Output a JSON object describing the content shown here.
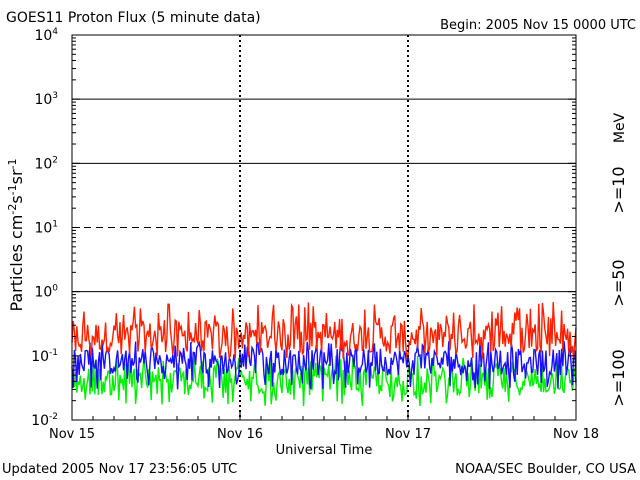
{
  "header": {
    "title": "GOES11 Proton Flux (5 minute data)",
    "begin": "Begin: 2005 Nov 15 0000 UTC"
  },
  "footer": {
    "updated": "Updated 2005 Nov 17 23:56:05 UTC",
    "credit": "NOAA/SEC Boulder, CO USA"
  },
  "colors": {
    "ge10": "#ff2000",
    "ge50": "#1a10ff",
    "ge100": "#00ee00",
    "axis": "#000000"
  },
  "chart_data": {
    "type": "line",
    "title": "GOES11 Proton Flux (5 minute data)",
    "xlabel": "Universal Time",
    "ylabel": {
      "base": "Particles cm",
      "sup1": "-2",
      "mid1": "s",
      "sup2": "-1",
      "mid2": "sr",
      "sup3": "-1"
    },
    "x_ticks": [
      "Nov 15",
      "Nov 16",
      "Nov 17",
      "Nov 18"
    ],
    "y_scale": "log",
    "ylim": [
      0.01,
      10000
    ],
    "y_ticks": [
      {
        "base": "10",
        "exp": "-2"
      },
      {
        "base": "10",
        "exp": "-1"
      },
      {
        "base": "10",
        "exp": "0"
      },
      {
        "base": "10",
        "exp": "1"
      },
      {
        "base": "10",
        "exp": "2"
      },
      {
        "base": "10",
        "exp": "3"
      },
      {
        "base": "10",
        "exp": "4"
      }
    ],
    "threshold_lines": [
      {
        "value": 1,
        "style": "solid"
      },
      {
        "value": 10,
        "style": "dashed"
      },
      {
        "value": 100,
        "style": "solid"
      },
      {
        "value": 1000,
        "style": "solid"
      }
    ],
    "day_separators": [
      "Nov 16",
      "Nov 17"
    ],
    "legend_placement": "right, vertical",
    "unit_label": "MeV",
    "series": [
      {
        "name": ">=10",
        "color": "#ff2000",
        "typical": 0.2,
        "range": [
          0.09,
          0.7
        ]
      },
      {
        "name": ">=50",
        "color": "#1a10ff",
        "typical": 0.08,
        "range": [
          0.03,
          0.17
        ]
      },
      {
        "name": ">=100",
        "color": "#00ee00",
        "typical": 0.04,
        "range": [
          0.016,
          0.1
        ]
      }
    ]
  }
}
